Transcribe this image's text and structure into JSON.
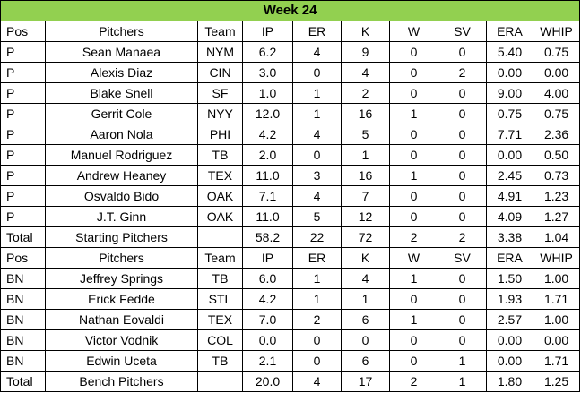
{
  "title": "Week 24",
  "header": [
    "Pos",
    "Pitchers",
    "Team",
    "IP",
    "ER",
    "K",
    "W",
    "SV",
    "ERA",
    "WHIP"
  ],
  "starters": [
    [
      "P",
      "Sean Manaea",
      "NYM",
      "6.2",
      "4",
      "9",
      "0",
      "0",
      "5.40",
      "0.75"
    ],
    [
      "P",
      "Alexis Diaz",
      "CIN",
      "3.0",
      "0",
      "4",
      "0",
      "2",
      "0.00",
      "0.00"
    ],
    [
      "P",
      "Blake Snell",
      "SF",
      "1.0",
      "1",
      "2",
      "0",
      "0",
      "9.00",
      "4.00"
    ],
    [
      "P",
      "Gerrit Cole",
      "NYY",
      "12.0",
      "1",
      "16",
      "1",
      "0",
      "0.75",
      "0.75"
    ],
    [
      "P",
      "Aaron Nola",
      "PHI",
      "4.2",
      "4",
      "5",
      "0",
      "0",
      "7.71",
      "2.36"
    ],
    [
      "P",
      "Manuel Rodriguez",
      "TB",
      "2.0",
      "0",
      "1",
      "0",
      "0",
      "0.00",
      "0.50"
    ],
    [
      "P",
      "Andrew Heaney",
      "TEX",
      "11.0",
      "3",
      "16",
      "1",
      "0",
      "2.45",
      "0.73"
    ],
    [
      "P",
      "Osvaldo Bido",
      "OAK",
      "7.1",
      "4",
      "7",
      "0",
      "0",
      "4.91",
      "1.23"
    ],
    [
      "P",
      "J.T. Ginn",
      "OAK",
      "11.0",
      "5",
      "12",
      "0",
      "0",
      "4.09",
      "1.27"
    ]
  ],
  "starters_total": [
    "Total",
    "Starting Pitchers",
    "",
    "58.2",
    "22",
    "72",
    "2",
    "2",
    "3.38",
    "1.04"
  ],
  "bench_header": [
    "Pos",
    "Pitchers",
    "Team",
    "IP",
    "ER",
    "K",
    "W",
    "SV",
    "ERA",
    "WHIP"
  ],
  "bench": [
    [
      "BN",
      "Jeffrey Springs",
      "TB",
      "6.0",
      "1",
      "4",
      "1",
      "0",
      "1.50",
      "1.00"
    ],
    [
      "BN",
      "Erick Fedde",
      "STL",
      "4.2",
      "1",
      "1",
      "0",
      "0",
      "1.93",
      "1.71"
    ],
    [
      "BN",
      "Nathan Eovaldi",
      "TEX",
      "7.0",
      "2",
      "6",
      "1",
      "0",
      "2.57",
      "1.00"
    ],
    [
      "BN",
      "Victor Vodnik",
      "COL",
      "0.0",
      "0",
      "0",
      "0",
      "0",
      "0.00",
      "0.00"
    ],
    [
      "BN",
      "Edwin Uceta",
      "TB",
      "2.1",
      "0",
      "6",
      "0",
      "1",
      "0.00",
      "1.71"
    ]
  ],
  "bench_total": [
    "Total",
    "Bench Pitchers",
    "",
    "20.0",
    "4",
    "17",
    "2",
    "1",
    "1.80",
    "1.25"
  ],
  "colors": {
    "title_bg": "#92d050",
    "grid": "#000000"
  }
}
